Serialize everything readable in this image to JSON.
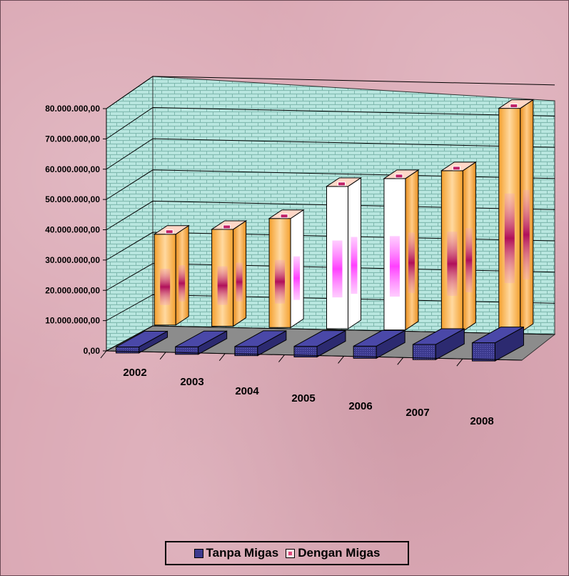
{
  "chart_data": {
    "type": "bar",
    "categories": [
      "2002",
      "2003",
      "2004",
      "2005",
      "2006",
      "2007",
      "2008"
    ],
    "series": [
      {
        "name": "Tanpa Migas",
        "values": [
          2000000,
          2500000,
          3000000,
          3500000,
          4000000,
          5000000,
          6000000
        ]
      },
      {
        "name": "Dengan Migas",
        "values": [
          30000000,
          32000000,
          36000000,
          47000000,
          50000000,
          53000000,
          74000000
        ]
      }
    ],
    "yticks": [
      "0,00",
      "10.000.000,00",
      "20.000.000,00",
      "30.000.000,00",
      "40.000.000,00",
      "50.000.000,00",
      "60.000.000,00",
      "70.000.000,00",
      "80.000.000,00"
    ],
    "ylim": [
      0,
      80000000
    ],
    "legend_position": "bottom",
    "grid": true,
    "colors": {
      "tanpa": "#3c3a8e",
      "dengan": "#f7a83a",
      "dengan_white": "#ffffff",
      "wall": "#aee0d8",
      "floor": "#8c8c8c"
    }
  },
  "legend": {
    "tanpa": "Tanpa Migas",
    "dengan": "Dengan Migas"
  }
}
